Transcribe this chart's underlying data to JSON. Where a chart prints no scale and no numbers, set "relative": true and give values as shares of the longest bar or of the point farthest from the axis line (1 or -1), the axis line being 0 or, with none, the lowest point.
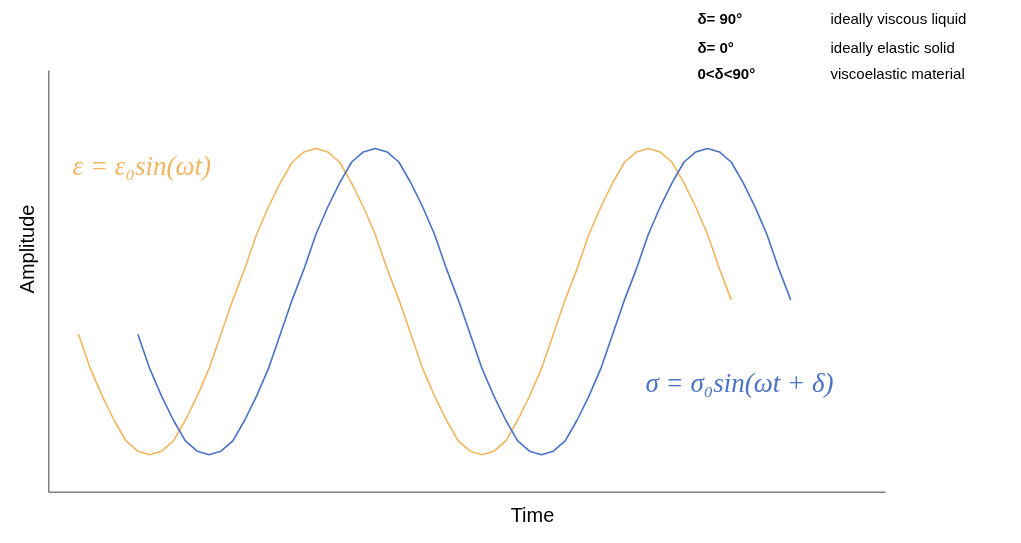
{
  "chart_data": {
    "type": "line",
    "relative": true,
    "xlabel": "Time",
    "ylabel": "Amplitude",
    "categories": [
      null,
      null,
      null,
      null,
      null,
      null,
      null,
      null,
      null,
      null,
      null,
      null,
      null,
      null,
      null,
      null,
      null,
      null,
      null,
      null,
      null,
      null,
      null,
      null,
      null,
      null,
      null,
      null,
      null,
      null,
      null,
      null,
      null,
      null,
      null,
      null,
      null,
      null,
      null,
      null,
      null,
      null,
      null,
      null,
      null,
      null,
      null,
      null,
      null,
      null,
      null,
      null,
      null,
      null,
      null,
      null,
      null,
      null,
      null,
      null,
      null
    ],
    "series": [
      {
        "name": "ε = ε₀sin(ωt)",
        "color": "#f0b660",
        "values": [
          0.46,
          0.36,
          0.28,
          0.21,
          0.15,
          0.12,
          0.11,
          0.12,
          0.15,
          0.21,
          0.28,
          0.36,
          0.46,
          0.56,
          0.65,
          0.75,
          0.83,
          0.9,
          0.96,
          0.99,
          1,
          0.99,
          0.96,
          0.9,
          0.83,
          0.75,
          0.65,
          0.56,
          0.46,
          0.36,
          0.28,
          0.21,
          0.15,
          0.12,
          0.11,
          0.12,
          0.15,
          0.21,
          0.28,
          0.36,
          0.46,
          0.56,
          0.65,
          0.75,
          0.83,
          0.9,
          0.96,
          0.99,
          1,
          0.99,
          0.96,
          0.9,
          0.83,
          0.75,
          0.65,
          0.56,
          null,
          null,
          null,
          null,
          null
        ]
      },
      {
        "name": "σ = σ₀sin(ωt + δ)",
        "color": "#4a72c4",
        "values": [
          null,
          null,
          null,
          null,
          null,
          0.46,
          0.36,
          0.28,
          0.21,
          0.15,
          0.12,
          0.11,
          0.12,
          0.15,
          0.21,
          0.28,
          0.36,
          0.46,
          0.56,
          0.65,
          0.75,
          0.83,
          0.9,
          0.96,
          0.99,
          1,
          0.99,
          0.96,
          0.9,
          0.83,
          0.75,
          0.65,
          0.56,
          0.46,
          0.36,
          0.28,
          0.21,
          0.15,
          0.12,
          0.11,
          0.12,
          0.15,
          0.21,
          0.28,
          0.36,
          0.46,
          0.56,
          0.65,
          0.75,
          0.83,
          0.9,
          0.96,
          0.99,
          1,
          0.99,
          0.96,
          0.9,
          0.83,
          0.75,
          0.65,
          0.56
        ]
      }
    ],
    "annotations": [
      "δ= 90°",
      "ideally viscous liquid",
      "δ= 0°",
      "ideally elastic solid",
      "0<δ<90°",
      "viscoelastic material"
    ]
  }
}
